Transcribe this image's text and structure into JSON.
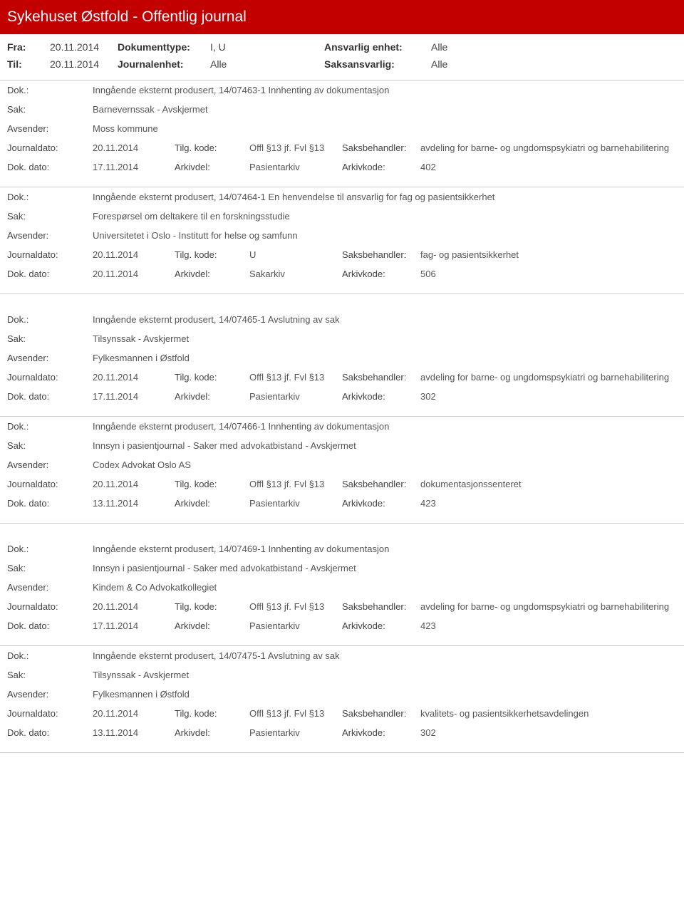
{
  "page_title": "Sykehuset Østfold - Offentlig journal",
  "meta": {
    "fra_label": "Fra:",
    "fra_value": "20.11.2014",
    "til_label": "Til:",
    "til_value": "20.11.2014",
    "doktype_label": "Dokumenttype:",
    "doktype_value": "I, U",
    "journalenhet_label": "Journalenhet:",
    "journalenhet_value": "Alle",
    "ansvarlig_label": "Ansvarlig enhet:",
    "ansvarlig_value": "Alle",
    "saksansvarlig_label": "Saksansvarlig:",
    "saksansvarlig_value": "Alle"
  },
  "labels": {
    "dok": "Dok.:",
    "sak": "Sak:",
    "avsender": "Avsender:",
    "journaldato": "Journaldato:",
    "tilgkode": "Tilg. kode:",
    "saksbehandler": "Saksbehandler:",
    "dokdato": "Dok. dato:",
    "arkivdel": "Arkivdel:",
    "arkivkode": "Arkivkode:"
  },
  "entries": [
    {
      "dok": "Inngående eksternt produsert, 14/07463-1 Innhenting av dokumentasjon",
      "sak": "Barnevernssak - Avskjermet",
      "avsender": "Moss kommune",
      "journaldato": "20.11.2014",
      "tilgkode": "Offl §13 jf. Fvl §13",
      "saksbehandler": "avdeling for barne- og ungdomspsykiatri og barnehabilitering",
      "dokdato": "17.11.2014",
      "arkivdel": "Pasientarkiv",
      "arkivkode": "402"
    },
    {
      "dok": "Inngående eksternt produsert, 14/07464-1 En henvendelse til ansvarlig for fag og pasientsikkerhet",
      "sak": "Forespørsel om deltakere til en forskningsstudie",
      "avsender": "Universitetet i Oslo - Institutt for helse og samfunn",
      "journaldato": "20.11.2014",
      "tilgkode": "U",
      "saksbehandler": "fag- og pasientsikkerhet",
      "dokdato": "20.11.2014",
      "arkivdel": "Sakarkiv",
      "arkivkode": "506"
    },
    {
      "dok": "Inngående eksternt produsert, 14/07465-1 Avslutning av sak",
      "sak": "Tilsynssak - Avskjermet",
      "avsender": "Fylkesmannen i Østfold",
      "journaldato": "20.11.2014",
      "tilgkode": "Offl §13 jf. Fvl §13",
      "saksbehandler": "avdeling for barne- og ungdomspsykiatri og barnehabilitering",
      "dokdato": "17.11.2014",
      "arkivdel": "Pasientarkiv",
      "arkivkode": "302"
    },
    {
      "dok": "Inngående eksternt produsert, 14/07466-1 Innhenting av dokumentasjon",
      "sak": "Innsyn i pasientjournal - Saker med advokatbistand - Avskjermet",
      "avsender": "Codex Advokat Oslo AS",
      "journaldato": "20.11.2014",
      "tilgkode": "Offl §13 jf. Fvl §13",
      "saksbehandler": "dokumentasjonssenteret",
      "dokdato": "13.11.2014",
      "arkivdel": "Pasientarkiv",
      "arkivkode": "423"
    },
    {
      "dok": "Inngående eksternt produsert, 14/07469-1 Innhenting av dokumentasjon",
      "sak": "Innsyn i pasientjournal - Saker med advokatbistand - Avskjermet",
      "avsender": "Kindem & Co  Advokatkollegiet",
      "journaldato": "20.11.2014",
      "tilgkode": "Offl §13 jf. Fvl §13",
      "saksbehandler": "avdeling for barne- og ungdomspsykiatri og barnehabilitering",
      "dokdato": "17.11.2014",
      "arkivdel": "Pasientarkiv",
      "arkivkode": "423"
    },
    {
      "dok": "Inngående eksternt produsert, 14/07475-1 Avslutning av sak",
      "sak": "Tilsynssak - Avskjermet",
      "avsender": "Fylkesmannen i Østfold",
      "journaldato": "20.11.2014",
      "tilgkode": "Offl §13 jf. Fvl §13",
      "saksbehandler": "kvalitets- og pasientsikkerhetsavdelingen",
      "dokdato": "13.11.2014",
      "arkivdel": "Pasientarkiv",
      "arkivkode": "302"
    }
  ]
}
